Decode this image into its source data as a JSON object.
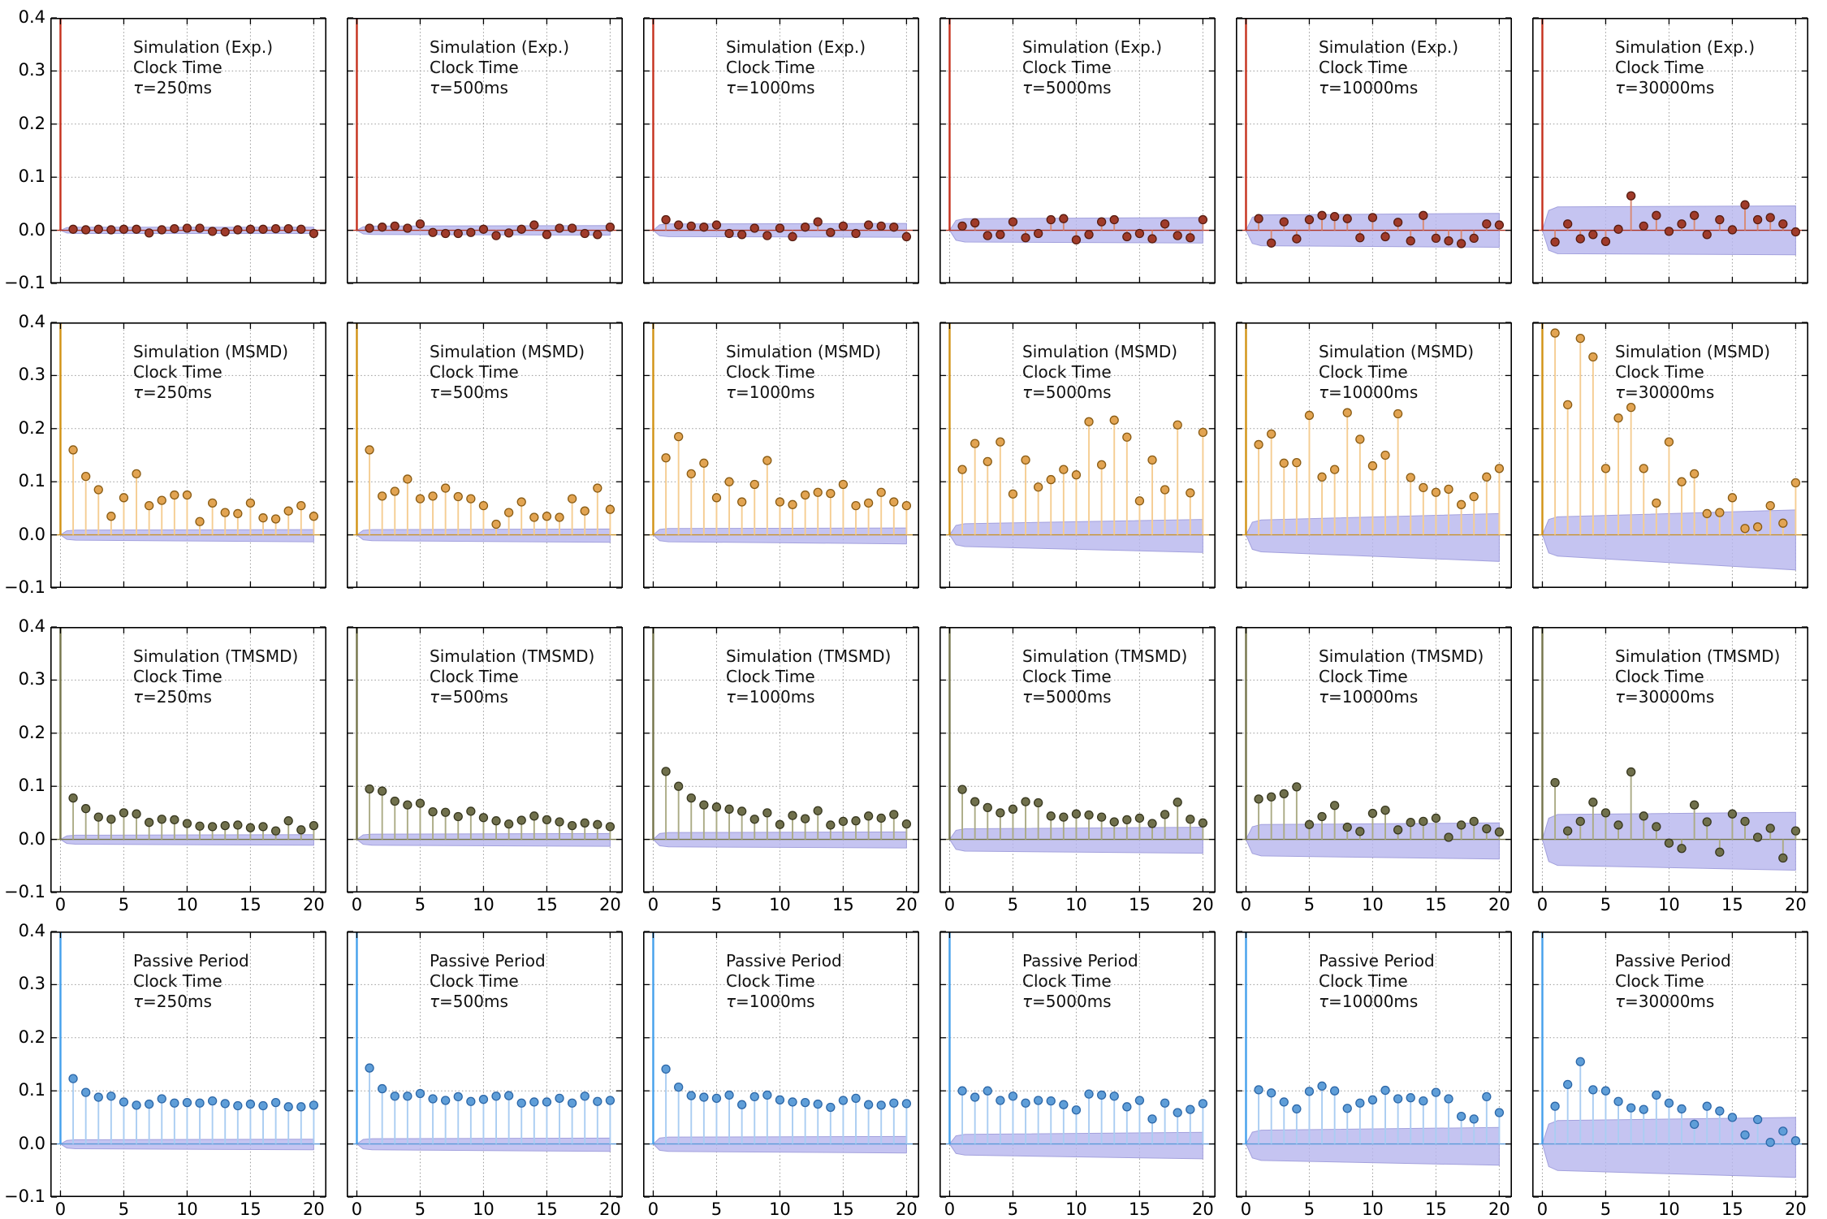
{
  "figure": {
    "background": "#ffffff",
    "tau_symbol": "τ",
    "ylim": [
      -0.1,
      0.4
    ],
    "xlim": [
      -0.8,
      21
    ],
    "yticks": [
      {
        "label": "0.4",
        "v": 0.4
      },
      {
        "label": "0.3",
        "v": 0.3
      },
      {
        "label": "0.2",
        "v": 0.2
      },
      {
        "label": "0.1",
        "v": 0.1
      },
      {
        "label": "0.0",
        "v": 0.0
      },
      {
        "label": "−0.1",
        "v": -0.1
      }
    ],
    "xticks": [
      {
        "label": "0",
        "v": 0
      },
      {
        "label": "5",
        "v": 5
      },
      {
        "label": "10",
        "v": 10
      },
      {
        "label": "15",
        "v": 15
      },
      {
        "label": "20",
        "v": 20
      }
    ],
    "grid_color": "#999999",
    "spine_color": "#000000",
    "band_fill": "#b7b5ee",
    "band_edge": "#a3a1dd"
  },
  "chart_data": {
    "type": "stem-grid",
    "description": "4x6 grid of autocorrelation stem plots with confidence bands; lags 1-20 plus clipped lag-0 line at x=0",
    "lags_start": 1,
    "rows": [
      {
        "name": "Simulation (Exp.)",
        "subtitle": "Clock Time",
        "show_xlabels": false,
        "colors": {
          "stem": "#d98a74",
          "marker": "#a03b2a",
          "marker_edge": "#571c10",
          "lag0": "#c5301c",
          "baseline": "#b03322"
        },
        "plots": [
          {
            "tau_label": "τ=250ms",
            "band": {
              "up0": 0.006,
              "up1": 0.006,
              "dn0": -0.006,
              "dn1": -0.006
            },
            "values": [
              0.002,
              0.001,
              0.002,
              0.001,
              0.002,
              0.002,
              -0.005,
              0.001,
              0.003,
              0.004,
              0.004,
              -0.002,
              -0.003,
              0.001,
              0.002,
              0.002,
              0.003,
              0.003,
              0.002,
              -0.006
            ]
          },
          {
            "tau_label": "τ=500ms",
            "band": {
              "up0": 0.008,
              "up1": 0.009,
              "dn0": -0.008,
              "dn1": -0.009
            },
            "values": [
              0.004,
              0.006,
              0.008,
              0.004,
              0.012,
              -0.004,
              -0.006,
              -0.006,
              -0.004,
              0.002,
              -0.01,
              -0.005,
              0.002,
              0.01,
              -0.008,
              0.004,
              0.004,
              -0.006,
              -0.008,
              0.006
            ]
          },
          {
            "tau_label": "τ=1000ms",
            "band": {
              "up0": 0.012,
              "up1": 0.013,
              "dn0": -0.012,
              "dn1": -0.013
            },
            "values": [
              0.02,
              0.01,
              0.008,
              0.006,
              0.01,
              -0.006,
              -0.008,
              0.004,
              -0.01,
              0.004,
              -0.012,
              0.006,
              0.016,
              -0.004,
              0.008,
              -0.006,
              0.01,
              0.008,
              0.006,
              -0.012
            ]
          },
          {
            "tau_label": "τ=5000ms",
            "band": {
              "up0": 0.022,
              "up1": 0.024,
              "dn0": -0.022,
              "dn1": -0.024
            },
            "values": [
              0.008,
              0.014,
              -0.01,
              -0.008,
              0.016,
              -0.014,
              -0.006,
              0.02,
              0.022,
              -0.018,
              -0.008,
              0.016,
              0.02,
              -0.012,
              -0.006,
              -0.016,
              0.012,
              -0.01,
              -0.014,
              0.02
            ]
          },
          {
            "tau_label": "τ=10000ms",
            "band": {
              "up0": 0.029,
              "up1": 0.032,
              "dn0": -0.029,
              "dn1": -0.032
            },
            "values": [
              0.022,
              -0.024,
              0.016,
              -0.016,
              0.02,
              0.028,
              0.026,
              0.022,
              -0.014,
              0.024,
              -0.012,
              0.015,
              -0.02,
              0.028,
              -0.015,
              -0.02,
              -0.025,
              -0.015,
              0.012,
              0.01
            ]
          },
          {
            "tau_label": "τ=30000ms",
            "band": {
              "up0": 0.044,
              "up1": 0.046,
              "dn0": -0.044,
              "dn1": -0.046
            },
            "values": [
              -0.022,
              0.012,
              -0.016,
              -0.008,
              -0.021,
              0.002,
              0.065,
              0.008,
              0.028,
              -0.002,
              0.012,
              0.028,
              -0.008,
              0.02,
              0.001,
              0.048,
              0.02,
              0.024,
              0.012,
              -0.003
            ]
          }
        ]
      },
      {
        "name": "Simulation (MSMD)",
        "subtitle": "Clock Time",
        "show_xlabels": false,
        "colors": {
          "stem": "#f5cd92",
          "marker": "#e2a452",
          "marker_edge": "#8a5c14",
          "lag0": "#d29213",
          "baseline": "#c8922a"
        },
        "plots": [
          {
            "tau_label": "τ=250ms",
            "band": {
              "up0": 0.009,
              "up1": 0.01,
              "dn0": -0.01,
              "dn1": -0.013
            },
            "values": [
              0.16,
              0.11,
              0.085,
              0.035,
              0.07,
              0.115,
              0.055,
              0.065,
              0.075,
              0.075,
              0.025,
              0.06,
              0.042,
              0.04,
              0.06,
              0.032,
              0.03,
              0.045,
              0.055,
              0.035
            ]
          },
          {
            "tau_label": "τ=500ms",
            "band": {
              "up0": 0.01,
              "up1": 0.011,
              "dn0": -0.011,
              "dn1": -0.014
            },
            "values": [
              0.16,
              0.073,
              0.082,
              0.105,
              0.068,
              0.073,
              0.088,
              0.072,
              0.068,
              0.055,
              0.02,
              0.042,
              0.062,
              0.033,
              0.035,
              0.033,
              0.068,
              0.045,
              0.088,
              0.048
            ]
          },
          {
            "tau_label": "τ=1000ms",
            "band": {
              "up0": 0.012,
              "up1": 0.013,
              "dn0": -0.013,
              "dn1": -0.017
            },
            "values": [
              0.145,
              0.185,
              0.115,
              0.135,
              0.07,
              0.1,
              0.062,
              0.095,
              0.14,
              0.062,
              0.057,
              0.075,
              0.08,
              0.078,
              0.095,
              0.055,
              0.06,
              0.08,
              0.062,
              0.055
            ]
          },
          {
            "tau_label": "τ=5000ms",
            "band": {
              "up0": 0.021,
              "up1": 0.029,
              "dn0": -0.022,
              "dn1": -0.033
            },
            "values": [
              0.123,
              0.172,
              0.138,
              0.175,
              0.077,
              0.141,
              0.09,
              0.104,
              0.123,
              0.113,
              0.213,
              0.132,
              0.216,
              0.184,
              0.064,
              0.141,
              0.085,
              0.207,
              0.079,
              0.193
            ]
          },
          {
            "tau_label": "τ=10000ms",
            "band": {
              "up0": 0.028,
              "up1": 0.04,
              "dn0": -0.032,
              "dn1": -0.05
            },
            "values": [
              0.17,
              0.19,
              0.135,
              0.136,
              0.225,
              0.109,
              0.123,
              0.23,
              0.18,
              0.13,
              0.15,
              0.228,
              0.108,
              0.089,
              0.08,
              0.086,
              0.057,
              0.072,
              0.109,
              0.125
            ]
          },
          {
            "tau_label": "τ=30000ms",
            "band": {
              "up0": 0.034,
              "up1": 0.047,
              "dn0": -0.04,
              "dn1": -0.066
            },
            "values": [
              0.38,
              0.245,
              0.37,
              0.335,
              0.125,
              0.22,
              0.24,
              0.125,
              0.06,
              0.175,
              0.1,
              0.115,
              0.04,
              0.042,
              0.07,
              0.012,
              0.015,
              0.055,
              0.022,
              0.098
            ]
          }
        ]
      },
      {
        "name": "Simulation (TMSMD)",
        "subtitle": "Clock Time",
        "show_xlabels": true,
        "colors": {
          "stem": "#abab85",
          "marker": "#70704c",
          "marker_edge": "#37371f",
          "lag0": "#74744a",
          "baseline": "#74744a"
        },
        "plots": [
          {
            "tau_label": "τ=250ms",
            "band": {
              "up0": 0.008,
              "up1": 0.009,
              "dn0": -0.009,
              "dn1": -0.011
            },
            "values": [
              0.078,
              0.058,
              0.042,
              0.038,
              0.05,
              0.048,
              0.032,
              0.038,
              0.037,
              0.03,
              0.025,
              0.024,
              0.026,
              0.027,
              0.022,
              0.024,
              0.016,
              0.035,
              0.018,
              0.026
            ]
          },
          {
            "tau_label": "τ=500ms",
            "band": {
              "up0": 0.01,
              "up1": 0.011,
              "dn0": -0.011,
              "dn1": -0.013
            },
            "values": [
              0.095,
              0.091,
              0.072,
              0.065,
              0.068,
              0.052,
              0.051,
              0.043,
              0.053,
              0.041,
              0.035,
              0.029,
              0.036,
              0.044,
              0.037,
              0.033,
              0.026,
              0.031,
              0.028,
              0.024
            ]
          },
          {
            "tau_label": "τ=1000ms",
            "band": {
              "up0": 0.013,
              "up1": 0.014,
              "dn0": -0.014,
              "dn1": -0.016
            },
            "values": [
              0.128,
              0.1,
              0.078,
              0.065,
              0.061,
              0.057,
              0.053,
              0.038,
              0.05,
              0.028,
              0.045,
              0.039,
              0.054,
              0.027,
              0.034,
              0.035,
              0.044,
              0.04,
              0.047,
              0.029
            ]
          },
          {
            "tau_label": "τ=5000ms",
            "band": {
              "up0": 0.02,
              "up1": 0.023,
              "dn0": -0.022,
              "dn1": -0.026
            },
            "values": [
              0.094,
              0.071,
              0.06,
              0.05,
              0.057,
              0.071,
              0.069,
              0.044,
              0.042,
              0.048,
              0.046,
              0.042,
              0.033,
              0.037,
              0.04,
              0.03,
              0.047,
              0.07,
              0.038,
              0.031
            ]
          },
          {
            "tau_label": "τ=10000ms",
            "band": {
              "up0": 0.028,
              "up1": 0.031,
              "dn0": -0.031,
              "dn1": -0.037
            },
            "values": [
              0.076,
              0.08,
              0.086,
              0.099,
              0.028,
              0.043,
              0.064,
              0.023,
              0.015,
              0.049,
              0.055,
              0.018,
              0.032,
              0.034,
              0.04,
              0.004,
              0.027,
              0.034,
              0.02,
              0.014
            ]
          },
          {
            "tau_label": "τ=30000ms",
            "band": {
              "up0": 0.047,
              "up1": 0.051,
              "dn0": -0.049,
              "dn1": -0.058
            },
            "values": [
              0.107,
              0.016,
              0.034,
              0.07,
              0.05,
              0.027,
              0.127,
              0.044,
              0.024,
              -0.007,
              -0.017,
              0.065,
              0.033,
              -0.024,
              0.048,
              0.034,
              0.004,
              0.021,
              -0.035,
              0.016
            ]
          }
        ]
      },
      {
        "name": "Passive Period",
        "subtitle": "Clock Time",
        "show_xlabels": true,
        "colors": {
          "stem": "#aacdf2",
          "marker": "#5f9ed8",
          "marker_edge": "#2c67a8",
          "lag0": "#44a0ec",
          "baseline": "#5b9bd9"
        },
        "plots": [
          {
            "tau_label": "τ=250ms",
            "band": {
              "up0": 0.008,
              "up1": 0.009,
              "dn0": -0.009,
              "dn1": -0.011
            },
            "values": [
              0.123,
              0.097,
              0.088,
              0.09,
              0.079,
              0.073,
              0.075,
              0.085,
              0.077,
              0.078,
              0.077,
              0.081,
              0.076,
              0.072,
              0.075,
              0.072,
              0.078,
              0.07,
              0.07,
              0.073
            ]
          },
          {
            "tau_label": "τ=500ms",
            "band": {
              "up0": 0.01,
              "up1": 0.011,
              "dn0": -0.011,
              "dn1": -0.014
            },
            "values": [
              0.143,
              0.104,
              0.09,
              0.09,
              0.095,
              0.085,
              0.082,
              0.089,
              0.08,
              0.084,
              0.09,
              0.091,
              0.077,
              0.079,
              0.079,
              0.086,
              0.077,
              0.09,
              0.08,
              0.082
            ]
          },
          {
            "tau_label": "τ=1000ms",
            "band": {
              "up0": 0.013,
              "up1": 0.014,
              "dn0": -0.014,
              "dn1": -0.017
            },
            "values": [
              0.141,
              0.107,
              0.091,
              0.088,
              0.086,
              0.092,
              0.074,
              0.089,
              0.092,
              0.083,
              0.079,
              0.078,
              0.075,
              0.069,
              0.082,
              0.086,
              0.074,
              0.073,
              0.077,
              0.076
            ]
          },
          {
            "tau_label": "τ=5000ms",
            "band": {
              "up0": 0.018,
              "up1": 0.022,
              "dn0": -0.021,
              "dn1": -0.028
            },
            "values": [
              0.1,
              0.088,
              0.1,
              0.082,
              0.09,
              0.077,
              0.082,
              0.081,
              0.074,
              0.064,
              0.094,
              0.092,
              0.09,
              0.07,
              0.082,
              0.047,
              0.077,
              0.059,
              0.065,
              0.076
            ]
          },
          {
            "tau_label": "τ=10000ms",
            "band": {
              "up0": 0.026,
              "up1": 0.031,
              "dn0": -0.031,
              "dn1": -0.04
            },
            "values": [
              0.102,
              0.096,
              0.079,
              0.066,
              0.099,
              0.109,
              0.1,
              0.067,
              0.077,
              0.083,
              0.101,
              0.085,
              0.087,
              0.081,
              0.097,
              0.085,
              0.052,
              0.047,
              0.089,
              0.059
            ]
          },
          {
            "tau_label": "τ=30000ms",
            "band": {
              "up0": 0.044,
              "up1": 0.05,
              "dn0": -0.05,
              "dn1": -0.063
            },
            "values": [
              0.071,
              0.112,
              0.155,
              0.102,
              0.1,
              0.08,
              0.068,
              0.065,
              0.092,
              0.077,
              0.066,
              0.037,
              0.071,
              0.062,
              0.05,
              0.017,
              0.046,
              0.003,
              0.024,
              0.006
            ]
          }
        ]
      }
    ]
  }
}
